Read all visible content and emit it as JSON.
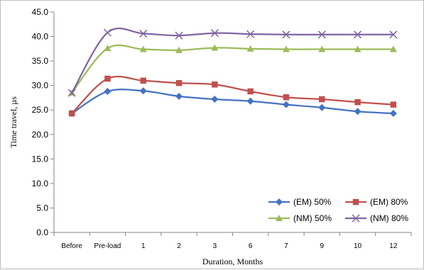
{
  "chart_data": {
    "type": "line",
    "title": "",
    "xlabel": "Duration, Months",
    "ylabel": "Time travel, µs",
    "categories": [
      "Before",
      "Pre-load",
      "1",
      "2",
      "3",
      "6",
      "7",
      "9",
      "10",
      "12"
    ],
    "ylim": [
      0,
      45
    ],
    "yticks": [
      "0.0",
      "5.0",
      "10.0",
      "15.0",
      "20.0",
      "25.0",
      "30.0",
      "35.0",
      "40.0",
      "45.0"
    ],
    "grid": false,
    "legend_position": "bottom-right",
    "series": [
      {
        "name": "(EM) 50%",
        "color": "#4472C4",
        "marker": "diamond",
        "values": [
          24.3,
          28.8,
          28.9,
          27.8,
          27.2,
          26.8,
          26.1,
          25.5,
          24.7,
          24.3
        ]
      },
      {
        "name": "(EM) 80%",
        "color": "#C0504D",
        "marker": "square",
        "values": [
          24.3,
          31.4,
          31.0,
          30.5,
          30.2,
          28.8,
          27.6,
          27.2,
          26.6,
          26.1
        ]
      },
      {
        "name": "(NM) 50%",
        "color": "#9BBB59",
        "marker": "triangle",
        "values": [
          28.5,
          37.6,
          37.4,
          37.2,
          37.7,
          37.5,
          37.4,
          37.4,
          37.4,
          37.4
        ]
      },
      {
        "name": "(NM) 80%",
        "color": "#8064A2",
        "marker": "x",
        "values": [
          28.5,
          40.8,
          40.6,
          40.2,
          40.7,
          40.5,
          40.4,
          40.4,
          40.4,
          40.4
        ]
      }
    ]
  }
}
